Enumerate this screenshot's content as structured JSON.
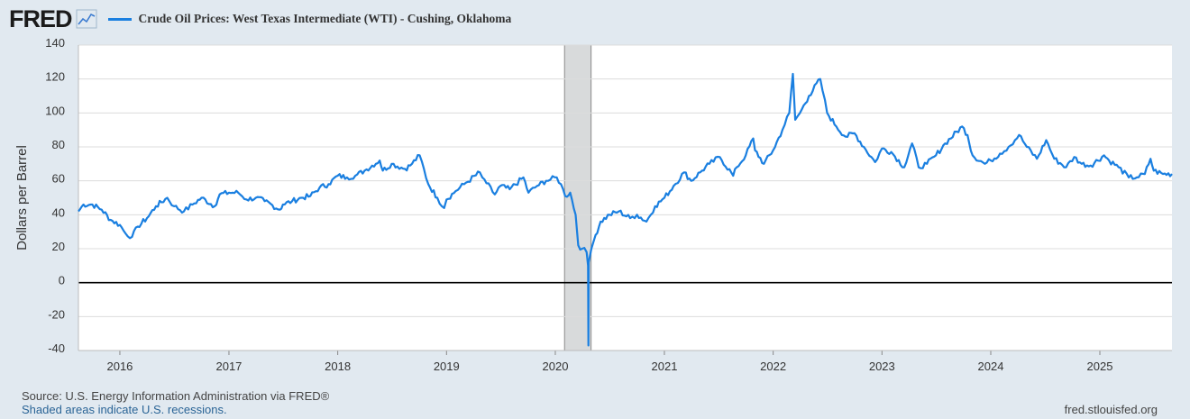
{
  "brand": {
    "logo": "FRED"
  },
  "colors": {
    "series": "#1a7fe0",
    "recession": "#d8dadb",
    "plot_bg": "#ffffff",
    "page_bg": "#e1e9f0",
    "grid": "#dcdcdc"
  },
  "icons": [
    "fred-chart-icon"
  ],
  "footer": {
    "source": "Source: U.S. Energy Information Administration via FRED®",
    "recession_note": "Shaded areas indicate U.S. recessions.",
    "site": "fred.stlouisfed.org"
  },
  "chart_data": {
    "type": "line",
    "title": "Crude Oil Prices: West Texas Intermediate (WTI) - Cushing, Oklahoma",
    "ylabel": "Dollars per Barrel",
    "xlabel": "",
    "ylim": [
      -40,
      140
    ],
    "yticks": [
      140,
      120,
      100,
      80,
      60,
      40,
      20,
      0,
      -20,
      -40
    ],
    "xlim": [
      "2015-08-15",
      "2025-08-31"
    ],
    "xticks": [
      "2016",
      "2017",
      "2018",
      "2019",
      "2020",
      "2021",
      "2022",
      "2023",
      "2024",
      "2025"
    ],
    "grid": true,
    "legend": "top-left",
    "recessions": [
      {
        "start": "2020-02-01",
        "end": "2020-04-30"
      }
    ],
    "series": [
      {
        "name": "Crude Oil Prices: West Texas Intermediate (WTI) - Cushing, Oklahoma",
        "x": [
          "2015-08-15",
          "2015-09-01",
          "2015-10-01",
          "2015-11-01",
          "2015-12-01",
          "2016-01-01",
          "2016-01-20",
          "2016-02-11",
          "2016-03-01",
          "2016-04-01",
          "2016-05-01",
          "2016-06-08",
          "2016-07-01",
          "2016-08-03",
          "2016-09-01",
          "2016-10-01",
          "2016-11-14",
          "2016-12-01",
          "2017-01-01",
          "2017-02-01",
          "2017-03-01",
          "2017-04-01",
          "2017-05-01",
          "2017-06-21",
          "2017-07-01",
          "2017-08-01",
          "2017-09-01",
          "2017-10-01",
          "2017-11-01",
          "2017-12-01",
          "2018-01-01",
          "2018-02-01",
          "2018-03-01",
          "2018-04-01",
          "2018-05-22",
          "2018-06-01",
          "2018-07-01",
          "2018-08-15",
          "2018-09-01",
          "2018-10-03",
          "2018-11-01",
          "2018-12-01",
          "2018-12-24",
          "2019-01-01",
          "2019-02-01",
          "2019-03-01",
          "2019-04-23",
          "2019-05-01",
          "2019-06-12",
          "2019-07-01",
          "2019-08-01",
          "2019-09-16",
          "2019-10-03",
          "2019-11-01",
          "2019-12-01",
          "2020-01-06",
          "2020-01-20",
          "2020-02-03",
          "2020-02-20",
          "2020-03-09",
          "2020-03-18",
          "2020-03-31",
          "2020-04-15",
          "2020-04-20",
          "2020-04-21",
          "2020-04-22",
          "2020-05-01",
          "2020-05-15",
          "2020-06-01",
          "2020-07-01",
          "2020-08-01",
          "2020-09-08",
          "2020-10-01",
          "2020-11-02",
          "2020-12-01",
          "2021-01-01",
          "2021-02-01",
          "2021-03-08",
          "2021-04-01",
          "2021-05-01",
          "2021-06-01",
          "2021-07-06",
          "2021-08-20",
          "2021-09-01",
          "2021-10-01",
          "2021-10-26",
          "2021-11-01",
          "2021-12-01",
          "2022-01-01",
          "2022-02-01",
          "2022-02-24",
          "2022-03-08",
          "2022-03-16",
          "2022-04-01",
          "2022-05-01",
          "2022-06-08",
          "2022-07-01",
          "2022-08-01",
          "2022-09-01",
          "2022-10-01",
          "2022-11-01",
          "2022-12-09",
          "2023-01-01",
          "2023-02-01",
          "2023-03-17",
          "2023-04-12",
          "2023-05-04",
          "2023-06-01",
          "2023-07-01",
          "2023-08-01",
          "2023-09-27",
          "2023-10-15",
          "2023-11-01",
          "2023-12-12",
          "2024-01-01",
          "2024-02-01",
          "2024-03-01",
          "2024-04-05",
          "2024-05-01",
          "2024-06-04",
          "2024-07-05",
          "2024-08-01",
          "2024-09-10",
          "2024-10-07",
          "2024-11-01",
          "2024-12-01",
          "2025-01-15",
          "2025-02-01",
          "2025-03-05",
          "2025-04-08",
          "2025-05-05",
          "2025-06-01",
          "2025-06-20",
          "2025-07-01",
          "2025-08-01",
          "2025-08-31"
        ],
        "y": [
          42,
          46,
          46,
          43,
          37,
          34,
          29,
          27,
          33,
          38,
          45,
          50,
          45,
          42,
          46,
          50,
          45,
          52,
          53,
          53,
          49,
          50,
          48,
          43,
          46,
          48,
          50,
          51,
          56,
          58,
          63,
          62,
          63,
          66,
          72,
          66,
          70,
          67,
          69,
          75,
          58,
          50,
          44,
          49,
          54,
          58,
          65,
          62,
          52,
          57,
          55,
          62,
          53,
          57,
          60,
          62,
          58,
          51,
          53,
          40,
          22,
          20,
          18,
          10,
          -37,
          12,
          20,
          28,
          36,
          40,
          42,
          38,
          40,
          36,
          45,
          50,
          57,
          65,
          60,
          65,
          70,
          74,
          63,
          68,
          75,
          85,
          78,
          70,
          78,
          90,
          100,
          123,
          96,
          100,
          110,
          120,
          100,
          92,
          86,
          88,
          80,
          71,
          79,
          77,
          68,
          82,
          68,
          70,
          75,
          82,
          92,
          87,
          75,
          70,
          72,
          76,
          80,
          87,
          80,
          73,
          84,
          73,
          68,
          74,
          70,
          69,
          75,
          72,
          68,
          62,
          62,
          64,
          73,
          66,
          64,
          64
        ]
      }
    ]
  }
}
